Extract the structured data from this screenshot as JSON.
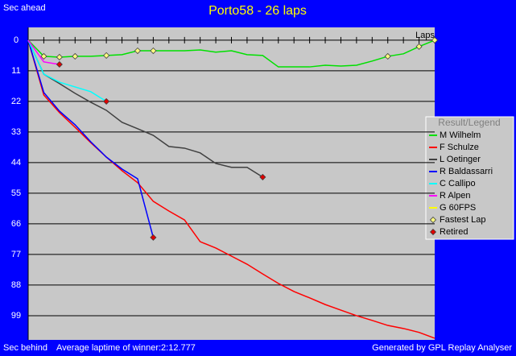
{
  "chart_data": {
    "type": "line",
    "title": "Porto58 - 26 laps",
    "y_label_top": "Sec ahead",
    "y_label_bottom": "Sec behind",
    "x_label": "Laps",
    "footer_left": "Average laptime of winner:2:12.777",
    "footer_right": "Generated by GPL Replay Analyser",
    "legend_title": "Result/Legend",
    "legend_position": "right",
    "grid": true,
    "y_inverted": true,
    "x": [
      0,
      1,
      2,
      3,
      4,
      5,
      6,
      7,
      8,
      9,
      10,
      11,
      12,
      13,
      14,
      15,
      16,
      17,
      18,
      19,
      20,
      21,
      22,
      23,
      24,
      25,
      26
    ],
    "xlim": [
      0,
      26
    ],
    "xticks": [
      0,
      1,
      2,
      3,
      4,
      5,
      6,
      7,
      8,
      9,
      10,
      11,
      12,
      13,
      14,
      15,
      16,
      17,
      18,
      19,
      20,
      21,
      22,
      23,
      24,
      25,
      26
    ],
    "ylim": [
      -4.6,
      107.7
    ],
    "yticks": [
      0,
      11,
      22,
      33,
      44,
      55,
      66,
      77,
      88,
      99
    ],
    "series": [
      {
        "name": "M Wilhelm",
        "color": "#00e000",
        "values": [
          0,
          5.8,
          6.1,
          5.8,
          5.8,
          5.5,
          5.2,
          3.8,
          3.8,
          3.8,
          3.8,
          3.5,
          4.3,
          3.8,
          5.2,
          5.5,
          9.6,
          9.6,
          9.6,
          9.0,
          9.3,
          9.0,
          7.5,
          5.8,
          4.9,
          2.3,
          0
        ]
      },
      {
        "name": "F Schulze",
        "color": "#ff0000",
        "values": [
          0,
          19.7,
          26,
          31.3,
          36.8,
          42,
          46.9,
          51.2,
          57.9,
          61.4,
          64.6,
          72.4,
          74.7,
          77.6,
          80.5,
          84,
          87.4,
          90.3,
          92.6,
          95,
          97,
          99,
          100.7,
          102.5,
          103.6,
          105,
          107.1
        ]
      },
      {
        "name": "L Oetinger",
        "color": "#404040",
        "values": [
          0,
          12.2,
          15.6,
          19.1,
          22.3,
          25.2,
          29.5,
          31.8,
          34.2,
          38.2,
          38.8,
          40.5,
          44.3,
          45.7,
          45.7,
          49.2,
          null,
          null,
          null,
          null,
          null,
          null,
          null,
          null,
          null,
          null,
          null
        ]
      },
      {
        "name": "R Baldassarri",
        "color": "#0000ff",
        "values": [
          0,
          18.8,
          25.5,
          30.4,
          36.5,
          42,
          46.3,
          49.8,
          70.9,
          null,
          null,
          null,
          null,
          null,
          null,
          null,
          null,
          null,
          null,
          null,
          null,
          null,
          null,
          null,
          null,
          null,
          null
        ]
      },
      {
        "name": "C Callipo",
        "color": "#00ffff",
        "values": [
          0,
          12.2,
          15.1,
          16.8,
          18.5,
          22,
          null,
          null,
          null,
          null,
          null,
          null,
          null,
          null,
          null,
          null,
          null,
          null,
          null,
          null,
          null,
          null,
          null,
          null,
          null,
          null,
          null
        ]
      },
      {
        "name": "R Alpen",
        "color": "#ff00ff",
        "values": [
          0,
          7.8,
          8.7,
          null,
          null,
          null,
          null,
          null,
          null,
          null,
          null,
          null,
          null,
          null,
          null,
          null,
          null,
          null,
          null,
          null,
          null,
          null,
          null,
          null,
          null,
          null,
          null
        ]
      },
      {
        "name": "G 60FPS",
        "color": "#ffff00",
        "values": [
          0,
          null,
          null,
          null,
          null,
          null,
          null,
          null,
          null,
          null,
          null,
          null,
          null,
          null,
          null,
          null,
          null,
          null,
          null,
          null,
          null,
          null,
          null,
          null,
          null,
          null,
          null
        ]
      },
      {
        "name": "Fastest Lap",
        "marker": "diamond",
        "color": "#ffff80",
        "values": [
          null,
          5.8,
          6.1,
          5.8,
          null,
          5.5,
          null,
          3.8,
          3.8,
          null,
          null,
          null,
          null,
          null,
          null,
          null,
          null,
          null,
          null,
          null,
          null,
          null,
          null,
          5.8,
          null,
          2.3,
          0
        ]
      },
      {
        "name": "Retired",
        "marker": "diamond",
        "color": "#e00000",
        "values": [
          null,
          null,
          8.7,
          null,
          null,
          22,
          null,
          null,
          70.9,
          null,
          null,
          null,
          null,
          null,
          null,
          49.2,
          null,
          null,
          null,
          null,
          null,
          null,
          null,
          null,
          null,
          null,
          null
        ]
      }
    ]
  }
}
